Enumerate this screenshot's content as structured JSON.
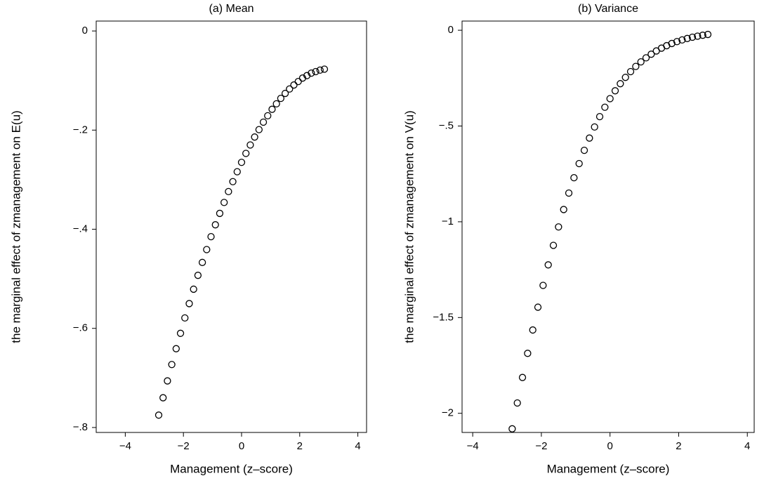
{
  "chart_data": [
    {
      "type": "scatter",
      "title": "(a) Mean",
      "x_label": "Management (z–score)",
      "y_label": "the marginal effect of zmanagement on E(u)",
      "x": [
        -2.85,
        -2.7,
        -2.55,
        -2.4,
        -2.25,
        -2.1,
        -1.95,
        -1.8,
        -1.65,
        -1.5,
        -1.35,
        -1.2,
        -1.05,
        -0.9,
        -0.75,
        -0.6,
        -0.45,
        -0.3,
        -0.15,
        0,
        0.15,
        0.3,
        0.45,
        0.6,
        0.75,
        0.9,
        1.05,
        1.2,
        1.35,
        1.5,
        1.65,
        1.8,
        1.95,
        2.1,
        2.25,
        2.4,
        2.55,
        2.7,
        2.85
      ],
      "values": [
        -0.775,
        -0.74,
        -0.706,
        -0.673,
        -0.641,
        -0.61,
        -0.579,
        -0.55,
        -0.521,
        -0.493,
        -0.467,
        -0.441,
        -0.415,
        -0.391,
        -0.368,
        -0.346,
        -0.324,
        -0.304,
        -0.284,
        -0.265,
        -0.247,
        -0.23,
        -0.214,
        -0.199,
        -0.184,
        -0.171,
        -0.158,
        -0.147,
        -0.136,
        -0.126,
        -0.117,
        -0.109,
        -0.102,
        -0.095,
        -0.09,
        -0.085,
        -0.082,
        -0.079,
        -0.077
      ],
      "color": "#000000",
      "xlim": [
        -5,
        4.3
      ],
      "ylim": [
        -0.81,
        0.02
      ],
      "xticks": [
        {
          "value": -4,
          "label": "−4"
        },
        {
          "value": -2,
          "label": "−2"
        },
        0,
        2,
        4
      ],
      "yticks": [
        0,
        {
          "value": -0.2,
          "label": "−.2"
        },
        {
          "value": -0.4,
          "label": "−.4"
        },
        {
          "value": -0.6,
          "label": "−.6"
        },
        {
          "value": -0.8,
          "label": "−.8"
        }
      ]
    },
    {
      "type": "scatter",
      "title": "(b) Variance",
      "x_label": "Management (z–score)",
      "y_label": "the marginal effect of zmanagement on V(u)",
      "x": [
        -2.85,
        -2.7,
        -2.55,
        -2.4,
        -2.25,
        -2.1,
        -1.95,
        -1.8,
        -1.65,
        -1.5,
        -1.35,
        -1.2,
        -1.05,
        -0.9,
        -0.75,
        -0.6,
        -0.45,
        -0.3,
        -0.15,
        0,
        0.15,
        0.3,
        0.45,
        0.6,
        0.75,
        0.9,
        1.05,
        1.2,
        1.35,
        1.5,
        1.65,
        1.8,
        1.95,
        2.1,
        2.25,
        2.4,
        2.55,
        2.7,
        2.85
      ],
      "values": [
        -2.081,
        -1.946,
        -1.813,
        -1.687,
        -1.565,
        -1.446,
        -1.332,
        -1.225,
        -1.123,
        -1.027,
        -0.936,
        -0.85,
        -0.77,
        -0.696,
        -0.627,
        -0.563,
        -0.505,
        -0.451,
        -0.402,
        -0.357,
        -0.316,
        -0.279,
        -0.246,
        -0.216,
        -0.189,
        -0.165,
        -0.144,
        -0.125,
        -0.108,
        -0.0934,
        -0.0805,
        -0.0691,
        -0.0591,
        -0.0504,
        -0.0429,
        -0.0364,
        -0.0308,
        -0.026,
        -0.0219
      ],
      "color": "#000000",
      "xlim": [
        -4.31,
        4.2
      ],
      "ylim": [
        -2.1,
        0.048
      ],
      "xticks": [
        {
          "value": -4,
          "label": "−4"
        },
        {
          "value": -2,
          "label": "−2"
        },
        0,
        2,
        4
      ],
      "yticks": [
        0,
        {
          "value": -0.5,
          "label": "−.5"
        },
        {
          "value": -1,
          "label": "−1"
        },
        {
          "value": -1.5,
          "label": "−1.5"
        },
        {
          "value": -2,
          "label": "−2"
        }
      ]
    }
  ]
}
